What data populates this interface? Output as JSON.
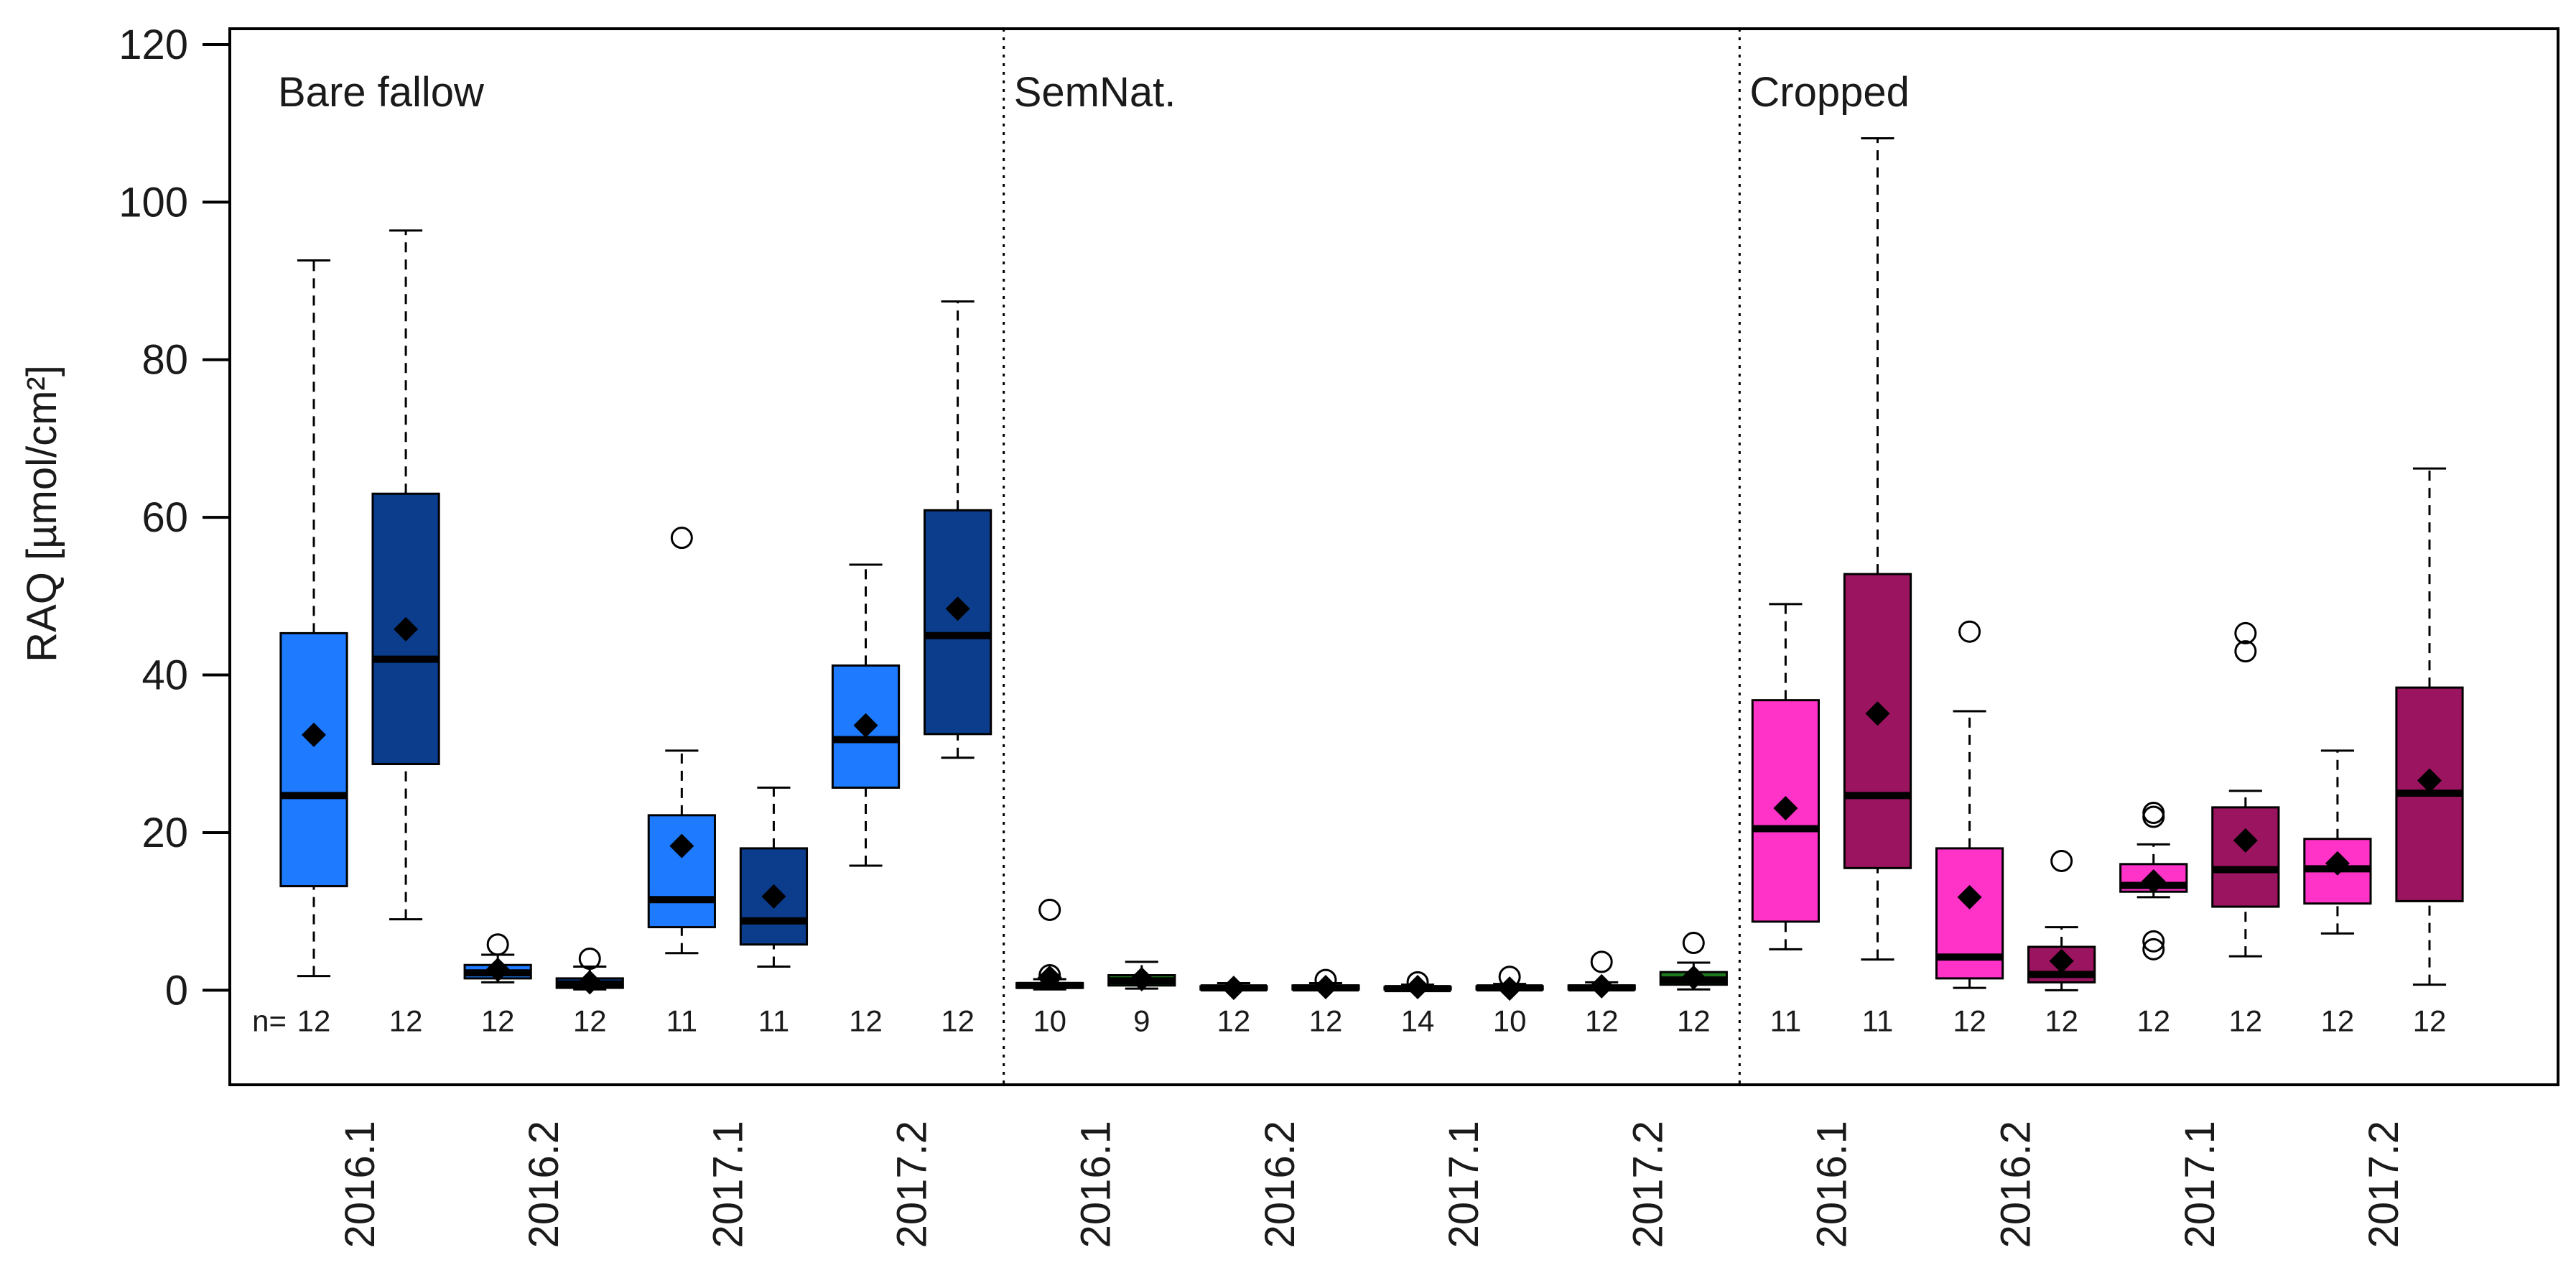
{
  "chart_data": {
    "type": "boxplot",
    "ylabel": "RAQ [µmol/cm²]",
    "xlabel": "",
    "ylim": [
      -12,
      122
    ],
    "yticks": [
      0,
      20,
      40,
      60,
      80,
      100,
      120
    ],
    "n_prefix": "n=",
    "separators_after_box": [
      8,
      16
    ],
    "colors": {
      "bare_light": "#1e7bff",
      "bare_dark": "#0b3d8c",
      "semnat_light": "#2aa02a",
      "semnat_dark": "#1f7a1f",
      "crop_light": "#ff33c8",
      "crop_dark": "#9b1460",
      "outline": "#000000"
    },
    "groups": [
      {
        "name": "Bare fallow",
        "boxes": [
          0,
          1,
          2,
          3,
          4,
          5,
          6,
          7
        ]
      },
      {
        "name": "SemNat.",
        "boxes": [
          8,
          9,
          10,
          11,
          12,
          13,
          14,
          15
        ]
      },
      {
        "name": "Cropped",
        "boxes": [
          16,
          17,
          18,
          19,
          20,
          21,
          22,
          23
        ]
      }
    ],
    "x_tick_labels": [
      {
        "label": "2016.1",
        "center_between": [
          0,
          1
        ]
      },
      {
        "label": "2016.2",
        "center_between": [
          2,
          3
        ]
      },
      {
        "label": "2017.1",
        "center_between": [
          4,
          5
        ]
      },
      {
        "label": "2017.2",
        "center_between": [
          6,
          7
        ]
      },
      {
        "label": "2016.1",
        "center_between": [
          8,
          9
        ]
      },
      {
        "label": "2016.2",
        "center_between": [
          10,
          11
        ]
      },
      {
        "label": "2017.1",
        "center_between": [
          12,
          13
        ]
      },
      {
        "label": "2017.2",
        "center_between": [
          14,
          15
        ]
      },
      {
        "label": "2016.1",
        "center_between": [
          16,
          17
        ]
      },
      {
        "label": "2016.2",
        "center_between": [
          18,
          19
        ]
      },
      {
        "label": "2017.1",
        "center_between": [
          20,
          21
        ]
      },
      {
        "label": "2017.2",
        "center_between": [
          22,
          23
        ]
      }
    ],
    "boxes": [
      {
        "group": "Bare fallow",
        "period": "2016.1",
        "shade": "bare_light",
        "n": 12,
        "min": 1.8,
        "q1": 13.2,
        "median": 24.7,
        "q3": 45.3,
        "max": 92.6,
        "mean": 32.4,
        "outliers": []
      },
      {
        "group": "Bare fallow",
        "period": "2016.1",
        "shade": "bare_dark",
        "n": 12,
        "min": 9.0,
        "q1": 28.7,
        "median": 42.0,
        "q3": 63.0,
        "max": 96.4,
        "mean": 45.8,
        "outliers": []
      },
      {
        "group": "Bare fallow",
        "period": "2016.2",
        "shade": "bare_light",
        "n": 12,
        "min": 1.0,
        "q1": 1.5,
        "median": 2.2,
        "q3": 3.2,
        "max": 4.5,
        "mean": 2.6,
        "outliers": [
          5.8
        ]
      },
      {
        "group": "Bare fallow",
        "period": "2016.2",
        "shade": "bare_dark",
        "n": 12,
        "min": 0.1,
        "q1": 0.3,
        "median": 0.8,
        "q3": 1.5,
        "max": 3.0,
        "mean": 1.0,
        "outliers": [
          4.0
        ]
      },
      {
        "group": "Bare fallow",
        "period": "2017.1",
        "shade": "bare_light",
        "n": 11,
        "min": 4.7,
        "q1": 8.0,
        "median": 11.5,
        "q3": 22.2,
        "max": 30.4,
        "mean": 18.3,
        "outliers": [
          57.4
        ]
      },
      {
        "group": "Bare fallow",
        "period": "2017.1",
        "shade": "bare_dark",
        "n": 11,
        "min": 3.0,
        "q1": 5.8,
        "median": 8.8,
        "q3": 18.0,
        "max": 25.7,
        "mean": 11.9,
        "outliers": []
      },
      {
        "group": "Bare fallow",
        "period": "2017.2",
        "shade": "bare_light",
        "n": 12,
        "min": 15.8,
        "q1": 25.7,
        "median": 31.8,
        "q3": 41.2,
        "max": 54.0,
        "mean": 33.6,
        "outliers": []
      },
      {
        "group": "Bare fallow",
        "period": "2017.2",
        "shade": "bare_dark",
        "n": 12,
        "min": 29.5,
        "q1": 32.5,
        "median": 45.0,
        "q3": 60.9,
        "max": 87.4,
        "mean": 48.4,
        "outliers": []
      },
      {
        "group": "SemNat.",
        "period": "2016.1",
        "shade": "semnat_light",
        "n": 10,
        "min": 0.1,
        "q1": 0.3,
        "median": 0.6,
        "q3": 0.9,
        "max": 1.4,
        "mean": 1.6,
        "outliers": [
          10.2,
          1.9
        ]
      },
      {
        "group": "SemNat.",
        "period": "2016.1",
        "shade": "semnat_dark",
        "n": 9,
        "min": 0.2,
        "q1": 0.6,
        "median": 1.2,
        "q3": 1.9,
        "max": 3.6,
        "mean": 1.4,
        "outliers": []
      },
      {
        "group": "SemNat.",
        "period": "2016.2",
        "shade": "semnat_light",
        "n": 12,
        "min": 0.0,
        "q1": 0.1,
        "median": 0.3,
        "q3": 0.5,
        "max": 0.9,
        "mean": 0.3,
        "outliers": []
      },
      {
        "group": "SemNat.",
        "period": "2016.2",
        "shade": "semnat_dark",
        "n": 12,
        "min": 0.0,
        "q1": 0.1,
        "median": 0.3,
        "q3": 0.6,
        "max": 0.9,
        "mean": 0.4,
        "outliers": [
          1.3
        ]
      },
      {
        "group": "SemNat.",
        "period": "2017.1",
        "shade": "semnat_light",
        "n": 14,
        "min": 0.0,
        "q1": 0.1,
        "median": 0.2,
        "q3": 0.4,
        "max": 0.7,
        "mean": 0.4,
        "outliers": [
          1.0
        ]
      },
      {
        "group": "SemNat.",
        "period": "2017.1",
        "shade": "semnat_dark",
        "n": 10,
        "min": 0.0,
        "q1": 0.1,
        "median": 0.3,
        "q3": 0.5,
        "max": 0.8,
        "mean": 0.2,
        "outliers": [
          1.7
        ]
      },
      {
        "group": "SemNat.",
        "period": "2017.2",
        "shade": "semnat_light",
        "n": 12,
        "min": 0.0,
        "q1": 0.1,
        "median": 0.3,
        "q3": 0.6,
        "max": 1.0,
        "mean": 0.5,
        "outliers": [
          3.6
        ]
      },
      {
        "group": "SemNat.",
        "period": "2017.2",
        "shade": "semnat_dark",
        "n": 12,
        "min": 0.1,
        "q1": 0.7,
        "median": 1.3,
        "q3": 2.3,
        "max": 3.5,
        "mean": 1.6,
        "outliers": [
          6.0
        ]
      },
      {
        "group": "Cropped",
        "period": "2016.1",
        "shade": "crop_light",
        "n": 11,
        "min": 5.2,
        "q1": 8.7,
        "median": 20.5,
        "q3": 36.8,
        "max": 49.0,
        "mean": 23.1,
        "outliers": []
      },
      {
        "group": "Cropped",
        "period": "2016.1",
        "shade": "crop_dark",
        "n": 11,
        "min": 3.9,
        "q1": 15.5,
        "median": 24.7,
        "q3": 52.8,
        "max": 108.1,
        "mean": 35.1,
        "outliers": []
      },
      {
        "group": "Cropped",
        "period": "2016.2",
        "shade": "crop_light",
        "n": 12,
        "min": 0.3,
        "q1": 1.5,
        "median": 4.2,
        "q3": 18.0,
        "max": 35.4,
        "mean": 11.8,
        "outliers": [
          45.5
        ]
      },
      {
        "group": "Cropped",
        "period": "2016.2",
        "shade": "crop_dark",
        "n": 12,
        "min": 0.0,
        "q1": 1.0,
        "median": 2.0,
        "q3": 5.5,
        "max": 8.0,
        "mean": 3.7,
        "outliers": [
          16.4
        ]
      },
      {
        "group": "Cropped",
        "period": "2017.1",
        "shade": "crop_light",
        "n": 12,
        "min": 11.8,
        "q1": 12.5,
        "median": 13.3,
        "q3": 16.0,
        "max": 18.5,
        "mean": 13.8,
        "outliers": [
          22.5,
          22.0,
          6.2,
          5.2
        ]
      },
      {
        "group": "Cropped",
        "period": "2017.1",
        "shade": "crop_dark",
        "n": 12,
        "min": 4.3,
        "q1": 10.6,
        "median": 15.3,
        "q3": 23.2,
        "max": 25.3,
        "mean": 19.0,
        "outliers": [
          45.3,
          43.0
        ]
      },
      {
        "group": "Cropped",
        "period": "2017.2",
        "shade": "crop_light",
        "n": 12,
        "min": 7.2,
        "q1": 11.0,
        "median": 15.4,
        "q3": 19.2,
        "max": 30.4,
        "mean": 16.1,
        "outliers": []
      },
      {
        "group": "Cropped",
        "period": "2017.2",
        "shade": "crop_dark",
        "n": 12,
        "min": 0.7,
        "q1": 11.3,
        "median": 25.0,
        "q3": 38.4,
        "max": 66.2,
        "mean": 26.6,
        "outliers": []
      }
    ]
  }
}
